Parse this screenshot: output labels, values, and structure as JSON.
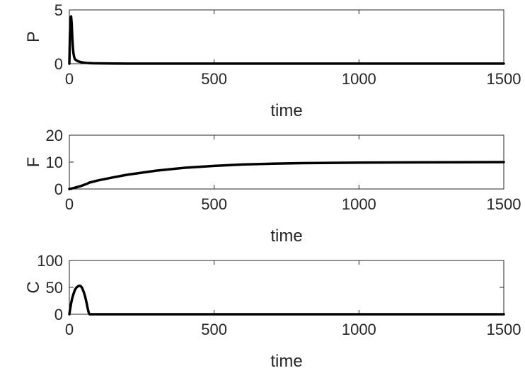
{
  "chart_data": [
    {
      "type": "line",
      "title": "",
      "xlabel": "time",
      "ylabel": "P",
      "xlim": [
        0,
        1500
      ],
      "ylim": [
        0,
        5
      ],
      "xticks": [
        0,
        500,
        1000,
        1500
      ],
      "yticks": [
        0,
        5
      ],
      "grid": false,
      "series": [
        {
          "color": "#000000",
          "x": [
            0,
            2,
            4,
            6,
            8,
            10,
            12,
            14,
            16,
            18,
            20,
            25,
            30,
            40,
            50,
            60,
            80,
            100,
            150,
            200,
            300,
            500,
            1000,
            1500
          ],
          "y": [
            0,
            2.5,
            4.2,
            4.4,
            3.8,
            2.6,
            1.6,
            1.0,
            0.7,
            0.5,
            0.4,
            0.3,
            0.22,
            0.15,
            0.1,
            0.07,
            0.04,
            0.03,
            0.02,
            0.01,
            0.01,
            0.01,
            0.01,
            0.01
          ]
        }
      ]
    },
    {
      "type": "line",
      "title": "",
      "xlabel": "time",
      "ylabel": "F",
      "xlim": [
        0,
        1500
      ],
      "ylim": [
        0,
        20
      ],
      "xticks": [
        0,
        500,
        1000,
        1500
      ],
      "yticks": [
        0,
        10,
        20
      ],
      "grid": false,
      "series": [
        {
          "color": "#000000",
          "x": [
            0,
            10,
            20,
            30,
            40,
            50,
            60,
            70,
            100,
            150,
            200,
            300,
            400,
            500,
            600,
            700,
            800,
            1000,
            1200,
            1500
          ],
          "y": [
            0,
            0.2,
            0.5,
            0.8,
            1.1,
            1.5,
            1.9,
            2.4,
            3.2,
            4.3,
            5.3,
            6.8,
            7.9,
            8.6,
            9.1,
            9.4,
            9.6,
            9.8,
            9.9,
            10.0
          ]
        }
      ]
    },
    {
      "type": "line",
      "title": "",
      "xlabel": "time",
      "ylabel": "C",
      "xlim": [
        0,
        1500
      ],
      "ylim": [
        0,
        100
      ],
      "xticks": [
        0,
        500,
        1000,
        1500
      ],
      "yticks": [
        0,
        50,
        100
      ],
      "grid": false,
      "series": [
        {
          "color": "#000000",
          "x": [
            0,
            3,
            6,
            10,
            15,
            20,
            25,
            30,
            35,
            40,
            45,
            50,
            55,
            60,
            63,
            66,
            68,
            70,
            100,
            500,
            1000,
            1500
          ],
          "y": [
            0,
            10,
            20,
            30,
            39,
            46,
            50,
            52,
            53,
            52,
            48,
            41,
            32,
            20,
            12,
            5,
            1,
            0,
            0,
            0,
            0,
            0
          ]
        }
      ]
    }
  ]
}
